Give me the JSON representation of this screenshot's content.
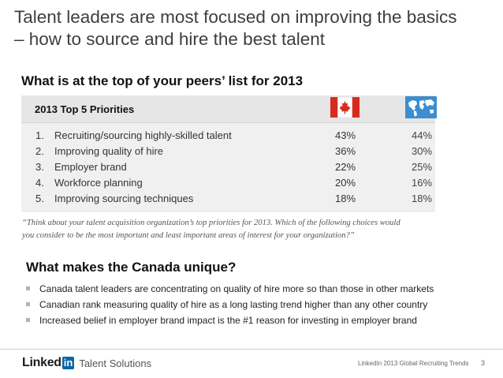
{
  "title": {
    "line1": "Talent leaders are most focused on improving the basics",
    "line2": "– how to source and hire the best talent"
  },
  "subheading": "What is at the top of your peers’ list for 2013",
  "table": {
    "header_label": "2013 Top 5 Priorities",
    "canada_icon": "canada-flag-icon",
    "global_icon": "world-map-icon",
    "rows": [
      {
        "num": "1.",
        "label": "Recruiting/sourcing highly-skilled talent",
        "canada": "43%",
        "global": "44%"
      },
      {
        "num": "2.",
        "label": "Improving quality of hire",
        "canada": "36%",
        "global": "30%"
      },
      {
        "num": "3.",
        "label": "Employer brand",
        "canada": "22%",
        "global": "25%"
      },
      {
        "num": "4.",
        "label": "Workforce planning",
        "canada": "20%",
        "global": "16%"
      },
      {
        "num": "5.",
        "label": "Improving sourcing techniques",
        "canada": "18%",
        "global": "18%"
      }
    ]
  },
  "quote": {
    "line1": "“Think about your talent acquisition organization’s top priorities for 2013. Which of the following choices would",
    "line2": "you consider to be the most important and least important areas of interest for your organization?”"
  },
  "unique": {
    "heading": "What makes the Canada unique?",
    "bullets": [
      "Canada talent leaders are concentrating on quality of hire more so than those in other markets",
      "Canadian rank measuring quality of hire as a long lasting trend higher than any other country",
      "Increased belief in employer brand impact is the #1 reason for investing in employer brand"
    ]
  },
  "footer": {
    "logo_linked": "Linked",
    "logo_in": "in",
    "logo_suffix": "Talent Solutions",
    "source": "LinkedIn 2013 Global Recruiting Trends",
    "page": "3"
  },
  "colors": {
    "canada_red": "#d52b1e",
    "map_blue": "#3b8ed0",
    "linkedin_blue": "#0a66a8"
  }
}
